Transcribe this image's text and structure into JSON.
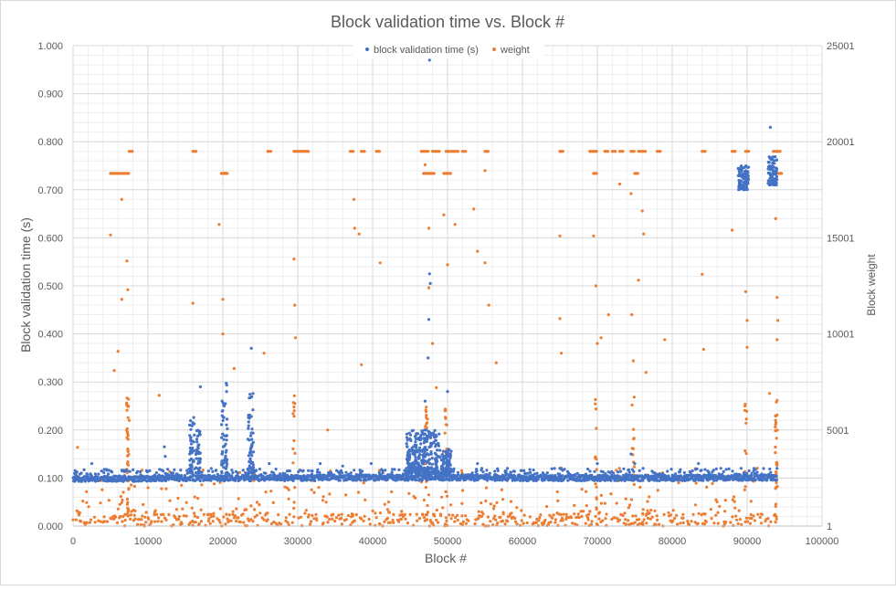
{
  "chart_data": {
    "type": "scatter",
    "title": "Block validation time vs. Block #",
    "xlabel": "Block #",
    "ylabel": "Block validation time (s)",
    "y2label": "Block weight",
    "xlim": [
      0,
      100000
    ],
    "ylim": [
      0,
      1.0
    ],
    "y2lim": [
      1,
      25001
    ],
    "x_ticks": [
      "0",
      "10000",
      "20000",
      "30000",
      "40000",
      "50000",
      "60000",
      "70000",
      "80000",
      "90000",
      "100000"
    ],
    "y_ticks": [
      "0.000",
      "0.100",
      "0.200",
      "0.300",
      "0.400",
      "0.500",
      "0.600",
      "0.700",
      "0.800",
      "0.900",
      "1.000"
    ],
    "y2_ticks": [
      "1",
      "5001",
      "10001",
      "15001",
      "20001",
      "25001"
    ],
    "grid": true,
    "legend_position": "top-center",
    "colors": {
      "validation": "#4472C4",
      "weight": "#ED7D31",
      "grid": "#D9D9D9",
      "text": "#595959"
    },
    "series": [
      {
        "name": "block validation time (s)",
        "axis": "left",
        "baseline_band": [
          [
            0,
            0.098
          ],
          [
            5000,
            0.099
          ],
          [
            10000,
            0.099
          ],
          [
            15000,
            0.1
          ],
          [
            20000,
            0.1
          ],
          [
            30000,
            0.1
          ],
          [
            40000,
            0.101
          ],
          [
            50000,
            0.101
          ],
          [
            60000,
            0.1
          ],
          [
            70000,
            0.1
          ],
          [
            80000,
            0.1
          ],
          [
            90000,
            0.101
          ],
          [
            94000,
            0.101
          ]
        ],
        "clusters": [
          {
            "x": [
              15500,
              16200
            ],
            "y": [
              0.11,
              0.23
            ]
          },
          {
            "x": [
              16400,
              17000
            ],
            "y": [
              0.11,
              0.2
            ]
          },
          {
            "x": [
              19800,
              20600
            ],
            "y": [
              0.11,
              0.3
            ]
          },
          {
            "x": [
              23300,
              24100
            ],
            "y": [
              0.11,
              0.28
            ]
          },
          {
            "x": [
              44500,
              49000
            ],
            "y": [
              0.11,
              0.2
            ]
          },
          {
            "x": [
              49200,
              50500
            ],
            "y": [
              0.11,
              0.16
            ]
          },
          {
            "x": [
              88800,
              90200
            ],
            "y": [
              0.7,
              0.75
            ]
          },
          {
            "x": [
              92800,
              94000
            ],
            "y": [
              0.71,
              0.77
            ]
          }
        ],
        "points": [
          [
            2500,
            0.13
          ],
          [
            12200,
            0.165
          ],
          [
            12300,
            0.145
          ],
          [
            17000,
            0.29
          ],
          [
            23800,
            0.37
          ],
          [
            26200,
            0.13
          ],
          [
            33000,
            0.13
          ],
          [
            36000,
            0.125
          ],
          [
            39800,
            0.13
          ],
          [
            47000,
            0.26
          ],
          [
            47500,
            0.43
          ],
          [
            47600,
            0.525
          ],
          [
            47700,
            0.505
          ],
          [
            47400,
            0.35
          ],
          [
            47600,
            0.97
          ],
          [
            50000,
            0.28
          ],
          [
            54000,
            0.13
          ],
          [
            58000,
            0.12
          ],
          [
            65000,
            0.12
          ],
          [
            70000,
            0.13
          ],
          [
            74500,
            0.15
          ],
          [
            75000,
            0.13
          ],
          [
            83500,
            0.13
          ],
          [
            93100,
            0.83
          ],
          [
            94000,
            0.12
          ]
        ]
      },
      {
        "name": "weight",
        "axis": "right",
        "bottom_band": [
          1,
          600
        ],
        "top_rows": [
          {
            "y": 19500,
            "x": [
              7500,
              16000,
              26000,
              29500,
              30000,
              30500,
              31000,
              37000,
              38500,
              40500,
              46500,
              47000,
              48000,
              48500,
              49800,
              50500,
              51000,
              52000,
              55000,
              65000,
              69000,
              69500,
              71000,
              72000,
              73000,
              74500,
              75500,
              76000,
              78000,
              84000,
              88000,
              89800,
              93500,
              94000
            ]
          },
          {
            "y": 18350,
            "x": [
              5000,
              5500,
              6000,
              6500,
              7000,
              19800,
              20000,
              20200,
              46800,
              47300,
              47800,
              49500,
              50000,
              69500,
              75000,
              93500,
              94200
            ]
          }
        ],
        "points": [
          [
            600,
            4100
          ],
          [
            5000,
            15150
          ],
          [
            5500,
            8100
          ],
          [
            6000,
            9100
          ],
          [
            6500,
            11800
          ],
          [
            6500,
            17000
          ],
          [
            7200,
            13800
          ],
          [
            7300,
            12300
          ],
          [
            7500,
            5500
          ],
          [
            11500,
            6800
          ],
          [
            16000,
            11600
          ],
          [
            19500,
            15700
          ],
          [
            20000,
            11800
          ],
          [
            20000,
            10000
          ],
          [
            21500,
            8200
          ],
          [
            25500,
            9000
          ],
          [
            29500,
            13900
          ],
          [
            29600,
            11500
          ],
          [
            29700,
            9800
          ],
          [
            29500,
            6200
          ],
          [
            34000,
            5000
          ],
          [
            37500,
            17000
          ],
          [
            37600,
            15500
          ],
          [
            38200,
            15200
          ],
          [
            38500,
            8400
          ],
          [
            41000,
            13700
          ],
          [
            47000,
            18800
          ],
          [
            47500,
            15500
          ],
          [
            47500,
            12400
          ],
          [
            48000,
            9500
          ],
          [
            48500,
            7200
          ],
          [
            49500,
            16200
          ],
          [
            50000,
            13600
          ],
          [
            51000,
            15700
          ],
          [
            53500,
            16500
          ],
          [
            54000,
            14300
          ],
          [
            55000,
            18500
          ],
          [
            55000,
            13700
          ],
          [
            55500,
            11500
          ],
          [
            56500,
            8500
          ],
          [
            65000,
            15100
          ],
          [
            65000,
            10800
          ],
          [
            65200,
            9000
          ],
          [
            69500,
            15100
          ],
          [
            69800,
            12500
          ],
          [
            70000,
            9500
          ],
          [
            70500,
            9800
          ],
          [
            71500,
            11000
          ],
          [
            73000,
            17800
          ],
          [
            74500,
            17300
          ],
          [
            74600,
            11000
          ],
          [
            74800,
            8600
          ],
          [
            75500,
            12800
          ],
          [
            76000,
            16400
          ],
          [
            76200,
            15200
          ],
          [
            76500,
            8000
          ],
          [
            79000,
            9700
          ],
          [
            84000,
            13100
          ],
          [
            84200,
            9200
          ],
          [
            88000,
            15400
          ],
          [
            89500,
            17700
          ],
          [
            89800,
            12200
          ],
          [
            90000,
            10700
          ],
          [
            90000,
            9300
          ],
          [
            93000,
            6900
          ],
          [
            93800,
            16000
          ],
          [
            94000,
            11900
          ],
          [
            94100,
            10700
          ],
          [
            94000,
            9700
          ]
        ]
      }
    ]
  }
}
